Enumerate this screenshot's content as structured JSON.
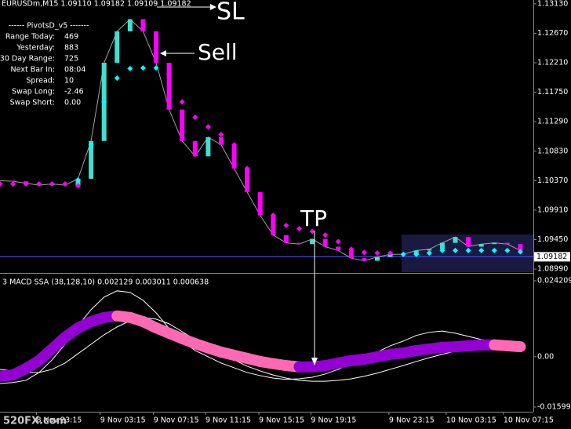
{
  "watermark": "520FX.com",
  "chart_data": [
    {
      "type": "line",
      "title": "EURUSDm,M15  1.09110 1.09182 1.09109 1.09182",
      "info_panel": {
        "title": "------ PivotsD_v5 -------",
        "rows": [
          [
            "Range  Today:",
            "469"
          ],
          [
            "Yesterday:",
            "883"
          ],
          [
            "30 Day Range:",
            "725"
          ],
          [
            "Next Bar In:",
            "08:04"
          ],
          [
            "Spread:",
            "10"
          ],
          [
            "Swap  Long:",
            "-2.46"
          ],
          [
            "Swap  Short:",
            "0.00"
          ]
        ]
      },
      "annotations": [
        "SL",
        "Sell",
        "TP"
      ],
      "last_price": 1.09182,
      "x": [
        0,
        1,
        2,
        3,
        4,
        5,
        6,
        7,
        8,
        9,
        10,
        11,
        12,
        13,
        14,
        15,
        16,
        17,
        18,
        19,
        20,
        21,
        22,
        23,
        24,
        25,
        26,
        27,
        28,
        29,
        30,
        31,
        32,
        33,
        34,
        35,
        36,
        37,
        38,
        39,
        40
      ],
      "xlim": [
        0,
        41
      ],
      "ylim": [
        1.0893,
        1.1319
      ],
      "yticks": [
        {
          "value": 1.1313,
          "label": "1.13130"
        },
        {
          "value": 1.1267,
          "label": "1.12670"
        },
        {
          "value": 1.1221,
          "label": "1.12210"
        },
        {
          "value": 1.1175,
          "label": "1.11750"
        },
        {
          "value": 1.1129,
          "label": "1.11290"
        },
        {
          "value": 1.1083,
          "label": "1.10830"
        },
        {
          "value": 1.1037,
          "label": "1.10370"
        },
        {
          "value": 1.0991,
          "label": "1.09910"
        },
        {
          "value": 1.0945,
          "label": "1.09450"
        },
        {
          "value": 1.0899,
          "label": "1.08990"
        }
      ],
      "series": [
        {
          "color": "#a0a0a0",
          "up_color": "#40e0d0",
          "down_color": "#ff00ff",
          "values": [
            1.1037,
            1.1036,
            1.1033,
            1.103,
            1.1032,
            1.103,
            1.104,
            1.1099,
            1.1221,
            1.127,
            1.1289,
            1.127,
            1.1221,
            1.1148,
            1.1099,
            1.1075,
            1.1105,
            1.1093,
            1.1056,
            1.1019,
            1.0983,
            1.0952,
            1.094,
            1.0938,
            1.0946,
            1.0934,
            1.0928,
            1.0916,
            1.0912,
            1.0918,
            1.0922,
            1.0922,
            1.0928,
            1.093,
            1.094,
            1.0949,
            1.0934,
            1.0938,
            1.094,
            1.0938,
            1.0928
          ]
        },
        {
          "color": "#ff00ff",
          "values": [
            1.1032,
            1.1032,
            1.1032,
            1.1032,
            1.1032,
            1.1032,
            1.1029,
            null,
            null,
            null,
            null,
            null,
            1.1236,
            1.1203,
            1.116,
            1.1136,
            1.1121,
            1.1109,
            1.1093,
            1.1056,
            1.1013,
            1.0983,
            1.0967,
            1.0962,
            1.0958,
            1.0952,
            1.0942,
            1.093,
            1.0925,
            1.0924,
            1.0924,
            null,
            null,
            null,
            null,
            null,
            null,
            null,
            null,
            null,
            null
          ]
        },
        {
          "color": "#00ffff",
          "values": [
            null,
            null,
            null,
            null,
            null,
            null,
            1.1038,
            1.1093,
            1.116,
            1.1197,
            1.1212,
            1.1213,
            1.1213,
            null,
            null,
            null,
            null,
            null,
            null,
            null,
            null,
            null,
            null,
            null,
            null,
            null,
            null,
            null,
            null,
            null,
            null,
            1.0922,
            1.0922,
            1.0924,
            1.0928,
            1.0928,
            1.0928,
            1.0928,
            1.0928,
            1.0928,
            1.0926
          ]
        }
      ]
    },
    {
      "type": "line",
      "title": "3 MACD SSA (38,128,10) 0.002129 0.003011 0.000638",
      "x": [
        0,
        1,
        2,
        3,
        4,
        5,
        6,
        7,
        8,
        9,
        10,
        11,
        12,
        13,
        14,
        15,
        16,
        17,
        18,
        19,
        20,
        21,
        22,
        23,
        24,
        25,
        26,
        27,
        28,
        29,
        30,
        31,
        32,
        33,
        34,
        35,
        36,
        37,
        38,
        39,
        40
      ],
      "xlim": [
        0,
        41
      ],
      "xticks": [
        {
          "value": 2.8,
          "label": "8 Nov 23:15"
        },
        {
          "value": 7.7,
          "label": "9 Nov 03:15"
        },
        {
          "value": 11.8,
          "label": "9 Nov 07:15"
        },
        {
          "value": 15.8,
          "label": "9 Nov 11:15"
        },
        {
          "value": 19.9,
          "label": "9 Nov 15:15"
        },
        {
          "value": 23.9,
          "label": "9 Nov 19:15"
        },
        {
          "value": 29.9,
          "label": "9 Nov 23:15"
        },
        {
          "value": 34.3,
          "label": "10 Nov 03:15"
        },
        {
          "value": 38.7,
          "label": "10 Nov 07:15"
        }
      ],
      "ylim": [
        -0.0175,
        0.0262
      ],
      "yticks": [
        0.024209,
        {
          "value": 0,
          "label": "0.00"
        },
        -0.015997
      ],
      "series": [
        {
          "color": "#9400d3",
          "falling_color": "#ff69b4",
          "values": [
            -0.0062,
            -0.0058,
            -0.0037,
            -0.0012,
            0.0025,
            0.0062,
            0.0092,
            0.0112,
            0.0125,
            0.013,
            0.0125,
            0.0112,
            0.0092,
            0.0075,
            0.0058,
            0.0042,
            0.0028,
            0.0015,
            0.0005,
            -0.0005,
            -0.0015,
            -0.0022,
            -0.0028,
            -0.0032,
            -0.0032,
            -0.0028,
            -0.002,
            -0.0012,
            -0.0008,
            0,
            0.0008,
            0.0012,
            0.002,
            0.0025,
            0.003,
            0.0032,
            0.0035,
            0.0038,
            0.0038,
            0.0035,
            0.0032
          ]
        },
        {
          "color": "#ffffff",
          "values": [
            -0.0085,
            -0.0082,
            -0.0075,
            -0.005,
            -0.001,
            0.004,
            0.01,
            0.015,
            0.019,
            0.021,
            0.0205,
            0.018,
            0.014,
            0.009,
            0.005,
            0.002,
            0,
            -0.002,
            -0.0035,
            -0.005,
            -0.006,
            -0.0068,
            -0.0072,
            -0.007,
            -0.0065,
            -0.0055,
            -0.004,
            -0.002,
            0,
            0.0015,
            0.0035,
            0.005,
            0.0068,
            0.0078,
            0.0082,
            0.0075,
            0.0065,
            0.0055,
            0.005,
            0.0048,
            0.0045
          ]
        },
        {
          "color": "#ffffff",
          "values": [
            -0.004,
            -0.0045,
            -0.005,
            -0.005,
            -0.004,
            -0.002,
            0.001,
            0.004,
            0.007,
            0.0095,
            0.0115,
            0.0125,
            0.012,
            0.0105,
            0.008,
            0.0055,
            0.003,
            0.001,
            -0.001,
            -0.003,
            -0.0045,
            -0.0058,
            -0.0068,
            -0.0075,
            -0.0078,
            -0.0078,
            -0.0075,
            -0.007,
            -0.0062,
            -0.0052,
            -0.004,
            -0.0028,
            -0.0015,
            -0.0003,
            0.0008,
            0.0018,
            0.0026,
            0.0032,
            0.0035,
            0.0037,
            0.0038
          ]
        }
      ]
    }
  ]
}
